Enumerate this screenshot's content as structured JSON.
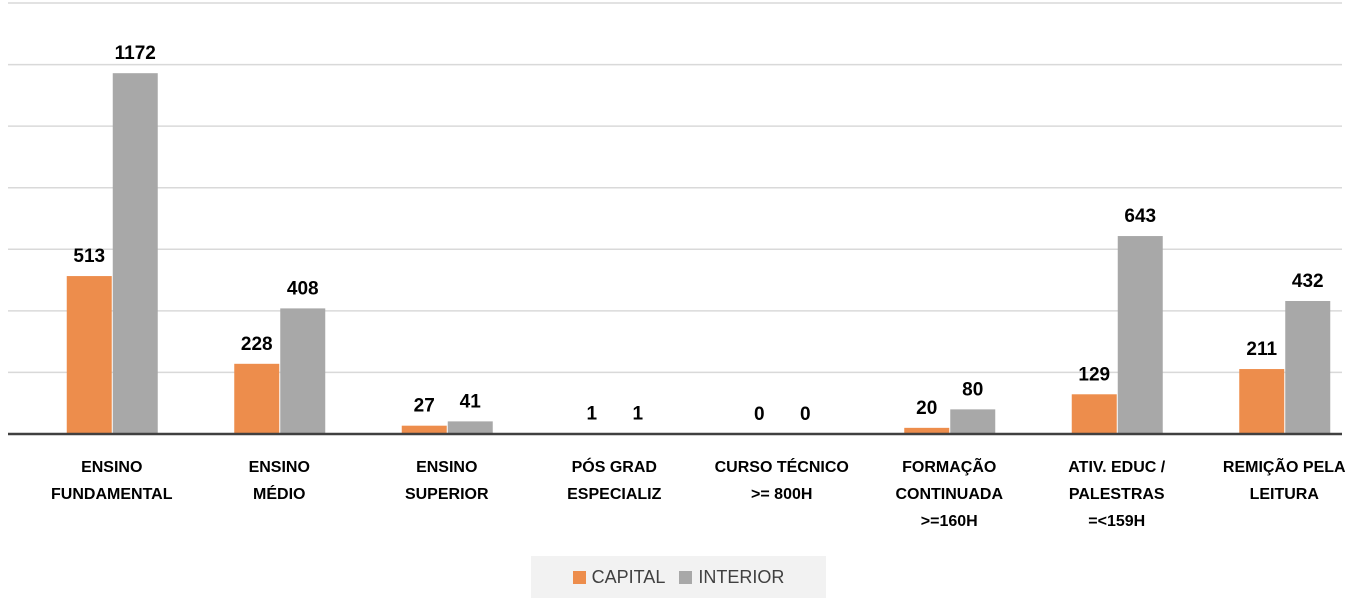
{
  "chart_data": {
    "type": "bar",
    "categories": [
      "ENSINO\nFUNDAMENTAL",
      "ENSINO\nMÉDIO",
      "ENSINO\nSUPERIOR",
      "PÓS GRAD\nESPECIALIZ",
      "CURSO TÉCNICO\n>= 800H",
      "FORMAÇÃO\nCONTINUADA\n>=160H",
      "ATIV. EDUC /\nPALESTRAS\n=<159H",
      "REMIÇÃO PELA\nLEITURA"
    ],
    "series": [
      {
        "name": "CAPITAL",
        "color": "#ed8d4c",
        "values": [
          513,
          228,
          27,
          1,
          0,
          20,
          129,
          211
        ]
      },
      {
        "name": "INTERIOR",
        "color": "#a8a8a8",
        "values": [
          1172,
          408,
          41,
          1,
          0,
          80,
          643,
          432
        ]
      }
    ],
    "ylim": [
      0,
      1400
    ],
    "yticks": [
      0,
      200,
      400,
      600,
      800,
      1000,
      1200,
      1400
    ],
    "grid": true,
    "legend": "bottom"
  }
}
